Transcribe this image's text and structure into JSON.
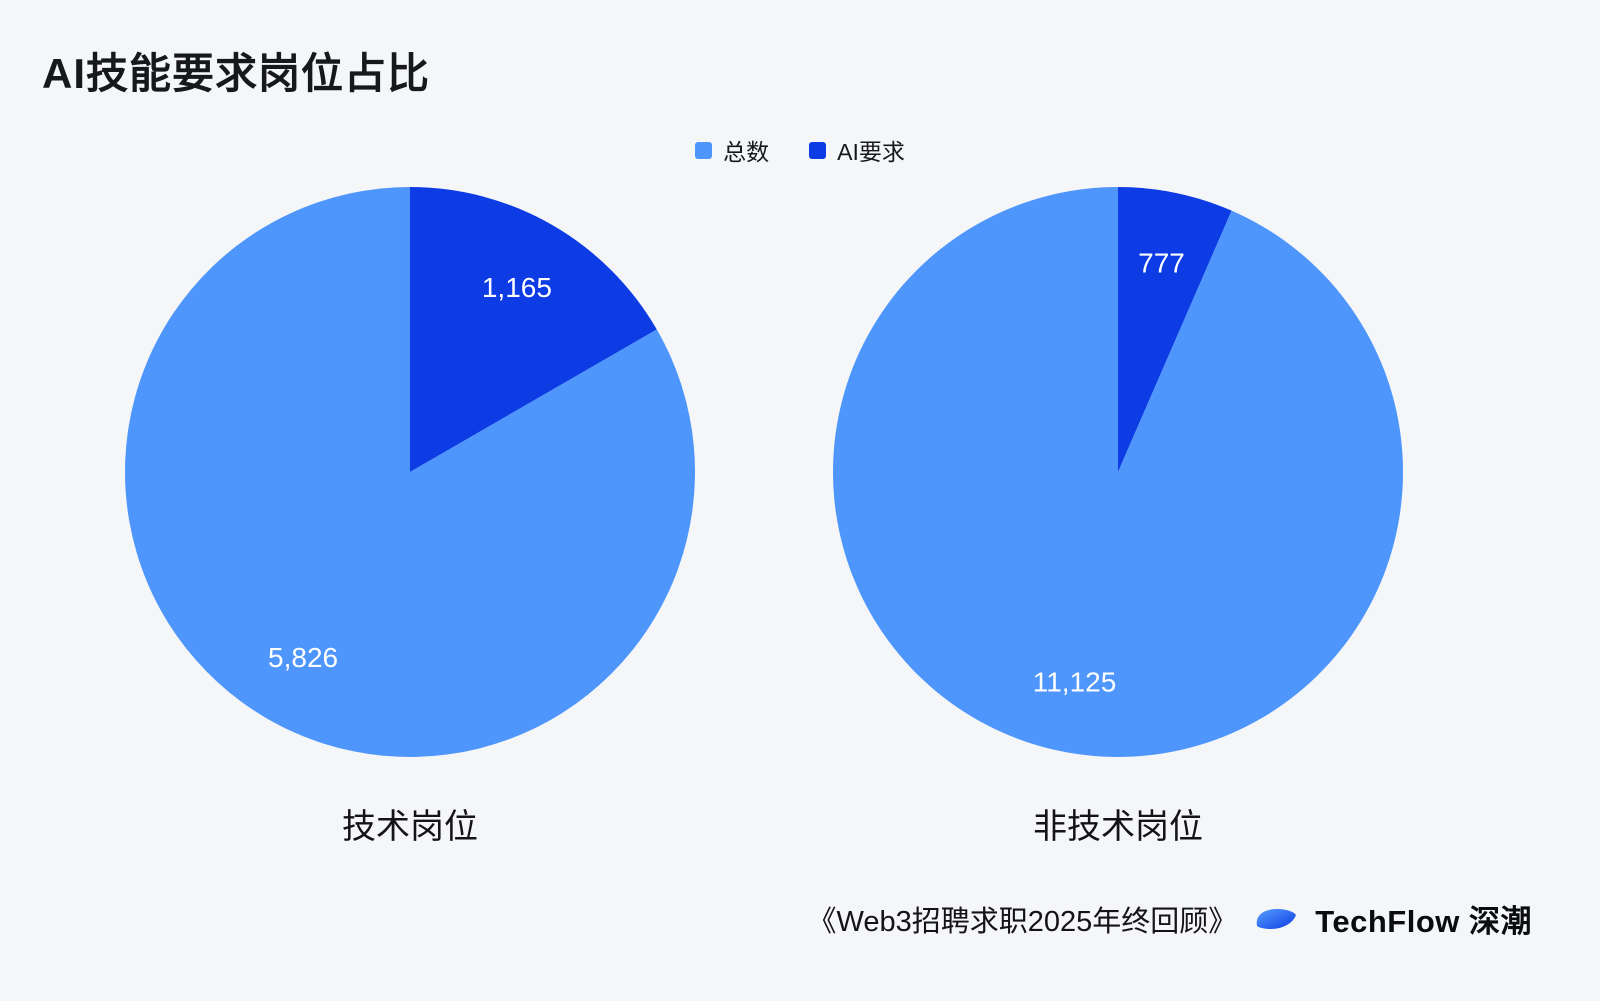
{
  "chart_data": {
    "type": "pie",
    "title": "AI技能要求岗位占比",
    "legend_position": "top-center",
    "background": "#f5f6f8",
    "value_label_color": "#ffffff",
    "legend": [
      {
        "label": "总数",
        "color": "#4e96fb"
      },
      {
        "label": "AI要求",
        "color": "#0d3be4"
      }
    ],
    "pies": [
      {
        "label": "技术岗位",
        "slices": [
          {
            "name": "AI要求",
            "value": 1165,
            "display": "1,165",
            "color": "#0d3be4"
          },
          {
            "name": "总数",
            "value": 5826,
            "display": "5,826",
            "color": "#4e96fb"
          }
        ]
      },
      {
        "label": "非技术岗位",
        "slices": [
          {
            "name": "AI要求",
            "value": 777,
            "display": "777",
            "color": "#0d3be4"
          },
          {
            "name": "总数",
            "value": 11125,
            "display": "11,125",
            "color": "#4e96fb"
          }
        ]
      }
    ]
  },
  "footer": {
    "source": "《Web3招聘求职2025年终回顾》",
    "brand": "TechFlow 深潮"
  }
}
